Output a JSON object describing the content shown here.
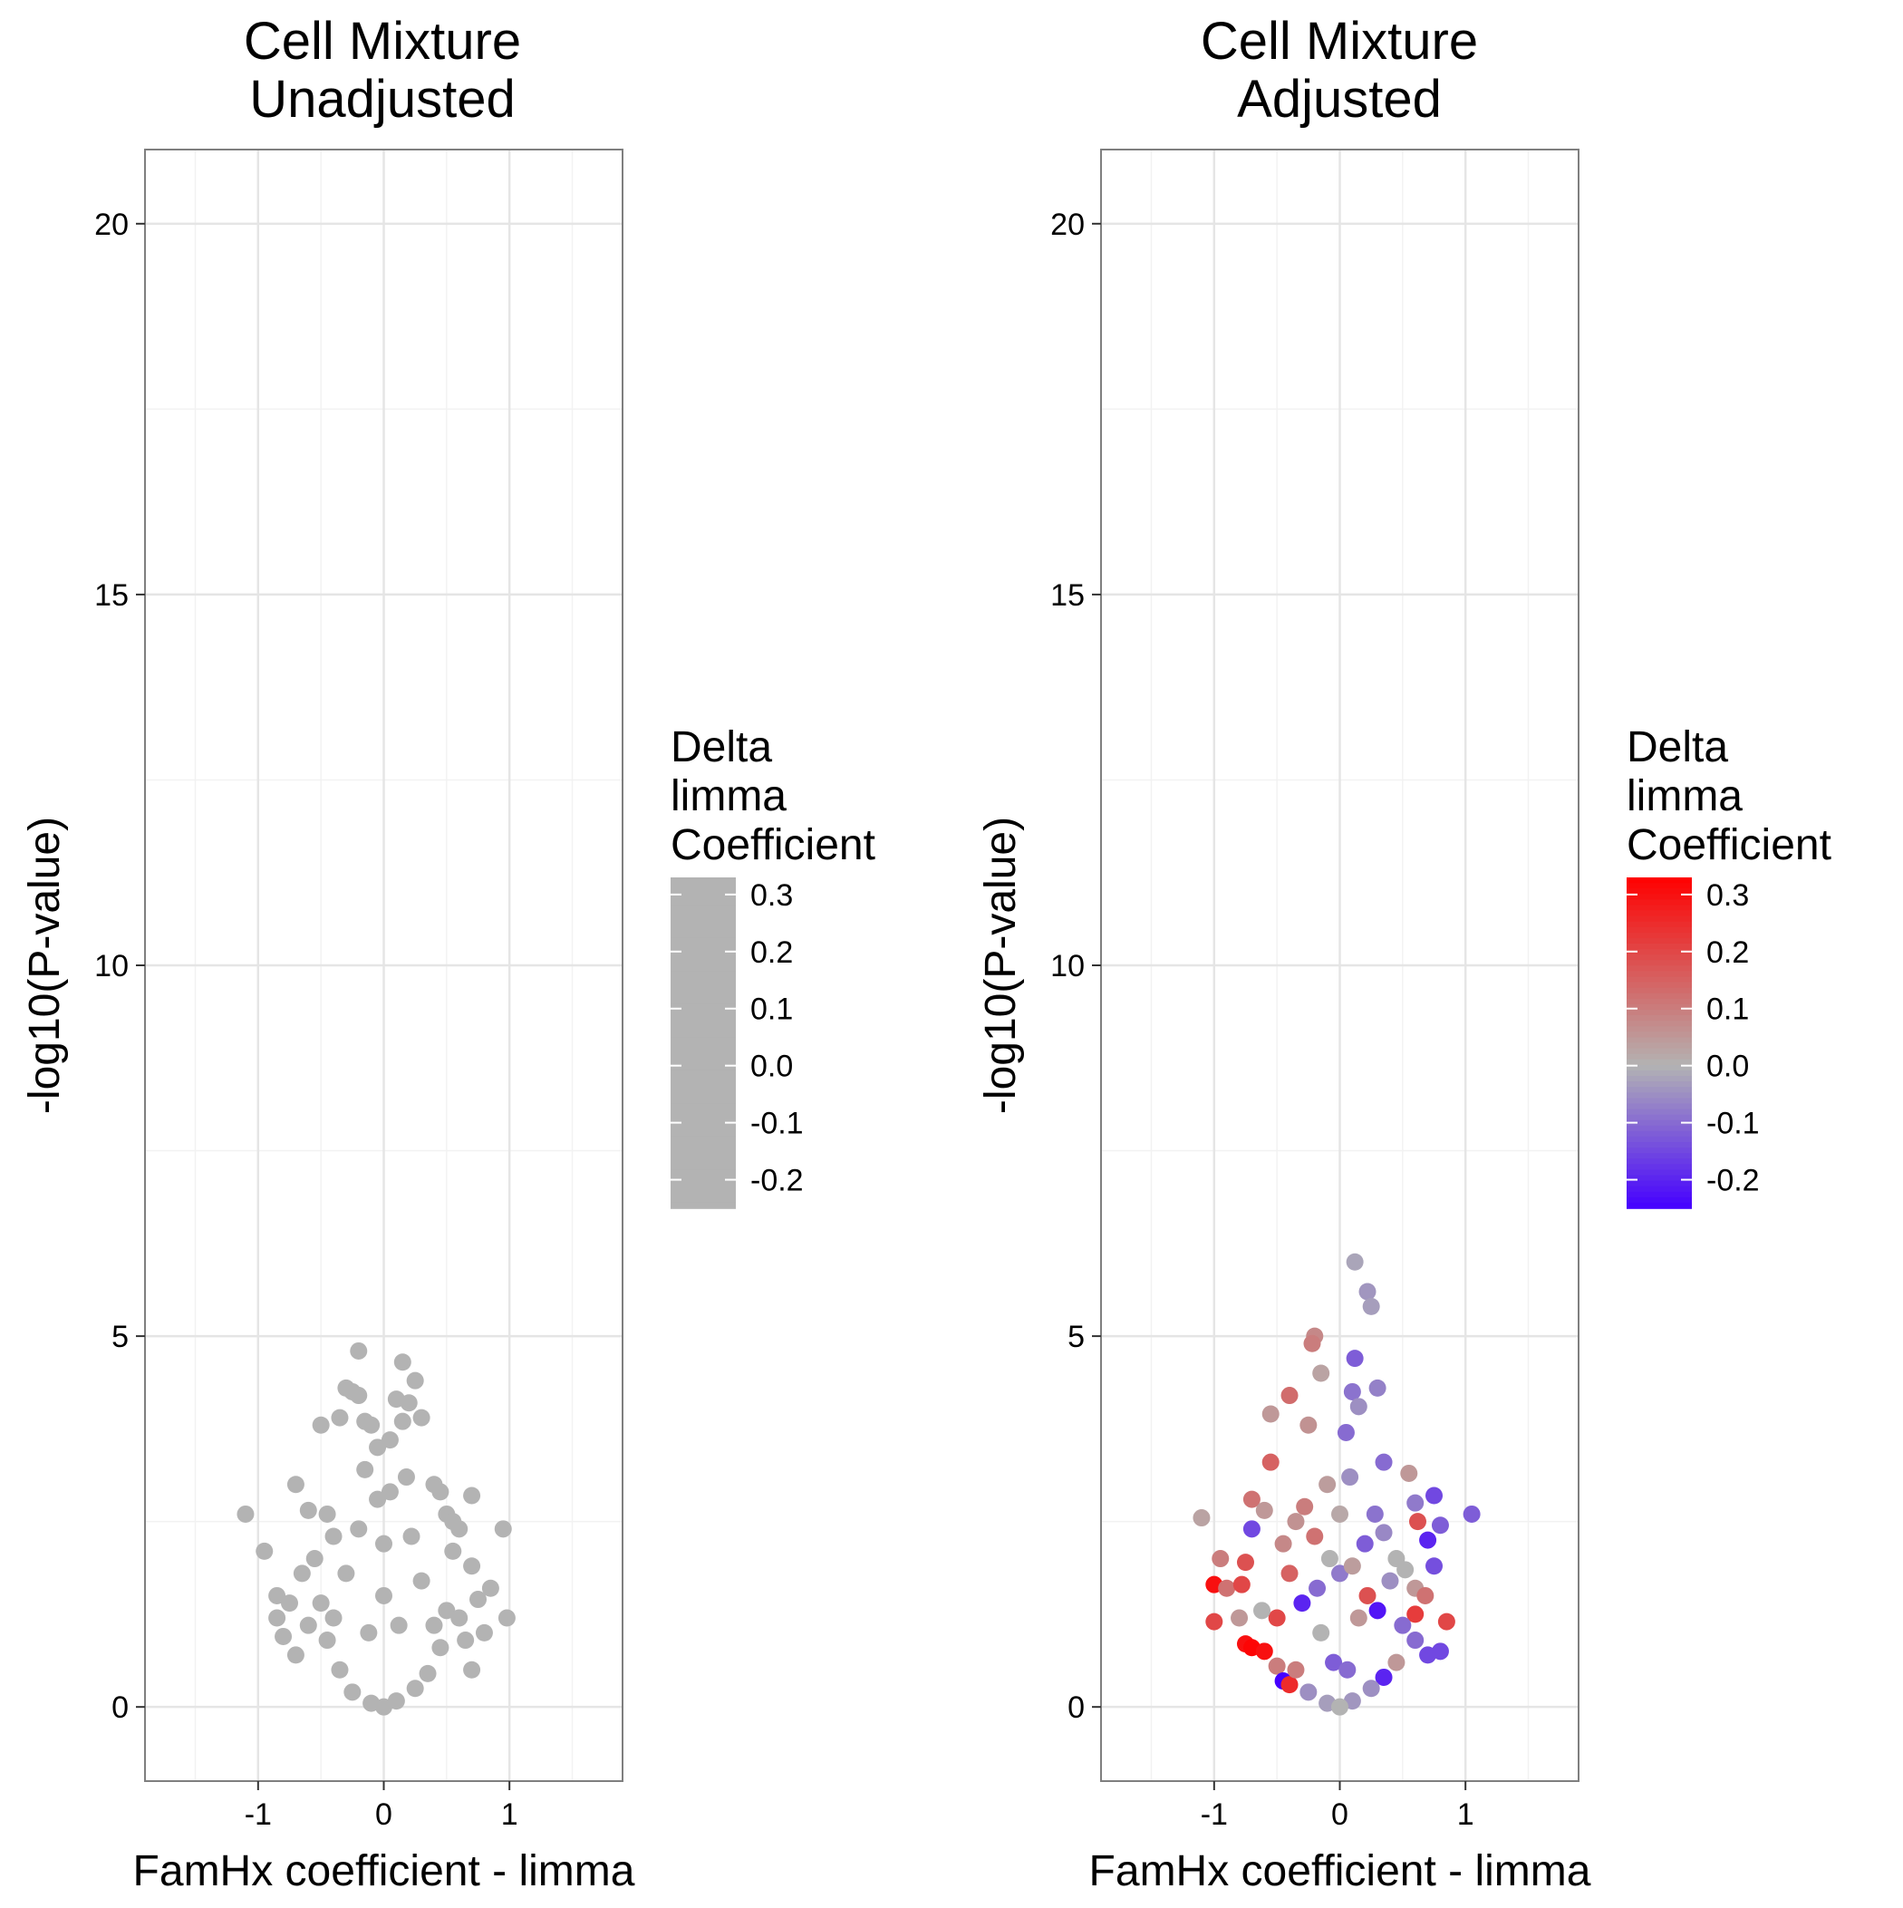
{
  "chart_data": [
    {
      "type": "scatter",
      "title": [
        "Cell Mixture",
        "Unadjusted"
      ],
      "xlabel": "FamHx coefficient - limma",
      "ylabel": "-log10(P-value)",
      "xlim": [
        -1.9,
        1.9
      ],
      "ylim": [
        -1,
        21
      ],
      "x_ticks": [
        -1,
        0,
        1
      ],
      "x_tick_labels": [
        "-1",
        "0",
        "1"
      ],
      "y_ticks": [
        0,
        5,
        10,
        15,
        20
      ],
      "y_tick_labels": [
        "0",
        "5",
        "10",
        "15",
        "20"
      ],
      "grid": true,
      "legend": {
        "title": [
          "Delta",
          "limma",
          "Coefficient"
        ],
        "labels": [
          "0.3",
          "0.2",
          "0.1",
          "0.0",
          "-0.1",
          "-0.2"
        ],
        "values": [
          0.3,
          0.2,
          0.1,
          0.0,
          -0.1,
          -0.2
        ],
        "range": [
          -0.25,
          0.33
        ],
        "placement": "right",
        "color_low": "#b3b3b3",
        "color_mid": "#b3b3b3",
        "color_high": "#b3b3b3"
      },
      "point_color": "#b3b3b3",
      "points": [
        [
          -0.2,
          4.8
        ],
        [
          -0.3,
          4.3
        ],
        [
          -0.25,
          4.25
        ],
        [
          -0.2,
          4.2
        ],
        [
          0.15,
          4.65
        ],
        [
          0.25,
          4.4
        ],
        [
          0.1,
          4.15
        ],
        [
          0.2,
          4.1
        ],
        [
          -0.35,
          3.9
        ],
        [
          -0.5,
          3.8
        ],
        [
          -0.15,
          3.85
        ],
        [
          -0.1,
          3.8
        ],
        [
          0.3,
          3.9
        ],
        [
          0.15,
          3.85
        ],
        [
          0.05,
          3.6
        ],
        [
          -0.05,
          3.5
        ],
        [
          -0.7,
          3.0
        ],
        [
          -0.6,
          2.65
        ],
        [
          -0.45,
          2.6
        ],
        [
          -0.4,
          2.3
        ],
        [
          0.4,
          3.0
        ],
        [
          0.45,
          2.9
        ],
        [
          0.5,
          2.6
        ],
        [
          0.55,
          2.5
        ],
        [
          0.7,
          2.85
        ],
        [
          0.6,
          2.4
        ],
        [
          -1.1,
          2.6
        ],
        [
          -0.95,
          2.1
        ],
        [
          0.95,
          2.4
        ],
        [
          0.98,
          1.2
        ],
        [
          -0.85,
          1.5
        ],
        [
          -0.85,
          1.2
        ],
        [
          -0.8,
          0.95
        ],
        [
          -0.75,
          1.4
        ],
        [
          -0.7,
          0.7
        ],
        [
          -0.65,
          1.8
        ],
        [
          0.85,
          1.6
        ],
        [
          0.75,
          1.45
        ],
        [
          0.8,
          1.0
        ],
        [
          0.7,
          1.9
        ],
        [
          0.65,
          0.9
        ],
        [
          0.7,
          0.5
        ],
        [
          -0.55,
          2.0
        ],
        [
          0.55,
          2.1
        ],
        [
          -0.5,
          1.4
        ],
        [
          0.5,
          1.3
        ],
        [
          -0.45,
          0.9
        ],
        [
          0.45,
          0.8
        ],
        [
          -0.35,
          0.5
        ],
        [
          0.35,
          0.45
        ],
        [
          -0.25,
          0.2
        ],
        [
          0.25,
          0.25
        ],
        [
          -0.1,
          0.05
        ],
        [
          0.1,
          0.08
        ],
        [
          0.0,
          0.0
        ],
        [
          -0.05,
          2.8
        ],
        [
          0.05,
          2.9
        ],
        [
          -0.15,
          3.2
        ],
        [
          0.18,
          3.1
        ],
        [
          -0.3,
          1.8
        ],
        [
          0.3,
          1.7
        ],
        [
          -0.2,
          2.4
        ],
        [
          0.22,
          2.3
        ],
        [
          -0.4,
          1.2
        ],
        [
          0.4,
          1.1
        ],
        [
          -0.12,
          1.0
        ],
        [
          0.12,
          1.1
        ],
        [
          0.0,
          1.5
        ],
        [
          0.0,
          2.2
        ],
        [
          -0.6,
          1.1
        ],
        [
          0.6,
          1.2
        ]
      ]
    },
    {
      "type": "scatter",
      "title": [
        "Cell Mixture",
        "Adjusted"
      ],
      "xlabel": "FamHx coefficient - limma",
      "ylabel": "-log10(P-value)",
      "xlim": [
        -1.9,
        1.9
      ],
      "ylim": [
        -1,
        21
      ],
      "x_ticks": [
        -1,
        0,
        1
      ],
      "x_tick_labels": [
        "-1",
        "0",
        "1"
      ],
      "y_ticks": [
        0,
        5,
        10,
        15,
        20
      ],
      "y_tick_labels": [
        "0",
        "5",
        "10",
        "15",
        "20"
      ],
      "grid": true,
      "legend": {
        "title": [
          "Delta",
          "limma",
          "Coefficient"
        ],
        "labels": [
          "0.3",
          "0.2",
          "0.1",
          "0.0",
          "-0.1",
          "-0.2"
        ],
        "values": [
          0.3,
          0.2,
          0.1,
          0.0,
          -0.1,
          -0.2
        ],
        "range": [
          -0.25,
          0.33
        ],
        "placement": "right",
        "color_low": "#4500ff",
        "color_mid": "#b3b3b3",
        "color_high": "#ff0000"
      },
      "points": [
        [
          0.12,
          6.0,
          -0.02
        ],
        [
          0.22,
          5.6,
          -0.04
        ],
        [
          0.25,
          5.4,
          -0.03
        ],
        [
          -0.2,
          5.0,
          0.08
        ],
        [
          -0.22,
          4.9,
          0.1
        ],
        [
          0.12,
          4.7,
          -0.12
        ],
        [
          -0.15,
          4.5,
          0.03
        ],
        [
          -0.4,
          4.2,
          0.13
        ],
        [
          0.1,
          4.25,
          -0.09
        ],
        [
          0.3,
          4.3,
          -0.07
        ],
        [
          -0.55,
          3.95,
          0.05
        ],
        [
          -0.25,
          3.8,
          0.06
        ],
        [
          0.15,
          4.05,
          -0.05
        ],
        [
          0.05,
          3.7,
          -0.1
        ],
        [
          -0.55,
          3.3,
          0.15
        ],
        [
          0.55,
          3.15,
          0.05
        ],
        [
          0.35,
          3.3,
          -0.1
        ],
        [
          -0.7,
          2.8,
          0.12
        ],
        [
          -0.6,
          2.65,
          0.05
        ],
        [
          0.75,
          2.85,
          -0.15
        ],
        [
          0.6,
          2.75,
          -0.08
        ],
        [
          -1.1,
          2.55,
          0.03
        ],
        [
          1.05,
          2.6,
          -0.12
        ],
        [
          0.8,
          2.45,
          -0.12
        ],
        [
          0.62,
          2.5,
          0.18
        ],
        [
          0.7,
          2.25,
          -0.2
        ],
        [
          -0.7,
          2.4,
          -0.15
        ],
        [
          -0.95,
          2.0,
          0.1
        ],
        [
          -0.75,
          1.95,
          0.18
        ],
        [
          0.75,
          1.9,
          -0.14
        ],
        [
          -1.0,
          1.65,
          0.3
        ],
        [
          -0.9,
          1.6,
          0.12
        ],
        [
          -0.78,
          1.65,
          0.2
        ],
        [
          0.6,
          1.6,
          0.05
        ],
        [
          0.68,
          1.5,
          0.12
        ],
        [
          -1.0,
          1.15,
          0.2
        ],
        [
          -0.8,
          1.2,
          0.05
        ],
        [
          0.85,
          1.15,
          0.2
        ],
        [
          0.6,
          1.25,
          0.22
        ],
        [
          -0.75,
          0.85,
          0.3
        ],
        [
          -0.7,
          0.8,
          0.32
        ],
        [
          -0.6,
          0.75,
          0.3
        ],
        [
          -0.5,
          0.55,
          0.1
        ],
        [
          0.6,
          0.9,
          -0.1
        ],
        [
          0.7,
          0.7,
          -0.15
        ],
        [
          0.8,
          0.75,
          -0.15
        ],
        [
          -0.45,
          0.35,
          -0.25
        ],
        [
          -0.4,
          0.3,
          0.25
        ],
        [
          -0.35,
          0.5,
          0.1
        ],
        [
          0.35,
          0.4,
          -0.2
        ],
        [
          0.45,
          0.6,
          0.05
        ],
        [
          -0.25,
          0.2,
          -0.05
        ],
        [
          0.25,
          0.25,
          -0.05
        ],
        [
          -0.1,
          0.05,
          -0.03
        ],
        [
          0.1,
          0.08,
          -0.04
        ],
        [
          0.0,
          0.0,
          0.0
        ],
        [
          -0.3,
          1.4,
          -0.2
        ],
        [
          0.3,
          1.3,
          -0.22
        ],
        [
          -0.2,
          2.3,
          0.12
        ],
        [
          0.2,
          2.2,
          -0.12
        ],
        [
          -0.1,
          3.0,
          0.04
        ],
        [
          0.08,
          3.1,
          -0.05
        ],
        [
          -0.4,
          1.8,
          0.15
        ],
        [
          0.4,
          1.7,
          -0.05
        ],
        [
          -0.5,
          1.2,
          0.2
        ],
        [
          0.5,
          1.1,
          -0.1
        ],
        [
          -0.15,
          1.0,
          0.0
        ],
        [
          0.15,
          1.2,
          0.05
        ],
        [
          0.0,
          1.8,
          -0.08
        ],
        [
          0.0,
          2.6,
          0.02
        ],
        [
          -0.28,
          2.7,
          0.1
        ],
        [
          0.28,
          2.6,
          -0.09
        ],
        [
          -0.62,
          1.3,
          0.0
        ],
        [
          0.52,
          1.85,
          0.0
        ],
        [
          -0.05,
          0.6,
          -0.12
        ],
        [
          0.06,
          0.5,
          -0.1
        ],
        [
          -0.45,
          2.2,
          0.08
        ],
        [
          0.45,
          2.0,
          0.0
        ],
        [
          -0.18,
          1.6,
          -0.1
        ],
        [
          0.22,
          1.5,
          0.18
        ],
        [
          -0.35,
          2.5,
          0.06
        ],
        [
          0.35,
          2.35,
          -0.06
        ],
        [
          -0.08,
          2.0,
          0.0
        ],
        [
          0.1,
          1.9,
          0.04
        ]
      ]
    }
  ]
}
